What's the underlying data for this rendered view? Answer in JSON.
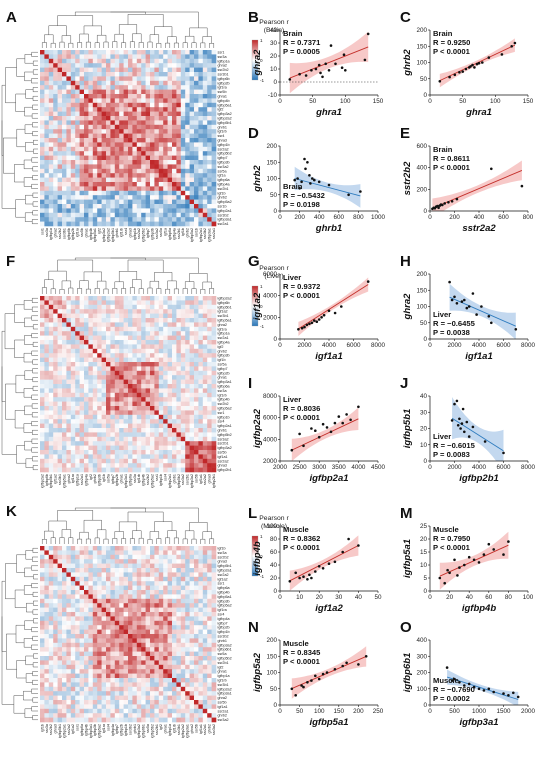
{
  "colors": {
    "positive": "#c4302b",
    "negative": "#2f7cbf",
    "red_band": "#f3b2b0",
    "blue_band": "#a9c8e8",
    "point": "#111111",
    "diagonal": "#c31f1f"
  },
  "heatmaps": [
    {
      "id": "A",
      "tissue": "Brain",
      "legend_title": [
        "Pearson r",
        "(Brain)"
      ],
      "legend_ticks": [
        "1",
        "0",
        "-1"
      ],
      "n": 40,
      "seed": 11,
      "base": 0.42,
      "blocks": [
        {
          "s": 9,
          "e": 32,
          "v": 0.42
        },
        {
          "s": 32,
          "e": 40,
          "v": -0.35
        }
      ],
      "gene_names": [
        "ssr1",
        "ssr3a",
        "igfbp1a",
        "ghra2",
        "ssr2b2",
        "ssr3b1",
        "igfbp6b",
        "igfbp2b",
        "igf1ra",
        "ssr5b",
        "ghra1",
        "igfbp4b",
        "igfbp5a1",
        "igf2",
        "igfbp3a2",
        "igfbp2a2",
        "igfbp5b1",
        "ghrb1",
        "igf1rb",
        "ssr4",
        "ghra3",
        "igfbp1b",
        "ssr2a2",
        "igfbp5b2",
        "igfbp7",
        "igfbp3b",
        "ssr3a2",
        "ssr5a",
        "igf1a",
        "igfbp6a",
        "igfbp4a",
        "ssr2b1",
        "igf1b",
        "ghrb2",
        "igfbp5a2",
        "ssr1b",
        "igfbp2a1",
        "ssr3b2",
        "igfbp3a1",
        "ssr2a1"
      ]
    },
    {
      "id": "F",
      "tissue": "Liver",
      "legend_title": [
        "Pearson r",
        "(Liver)"
      ],
      "legend_ticks": [
        "1",
        "0",
        "-1"
      ],
      "n": 40,
      "seed": 29,
      "base": 0.3,
      "blocks": [
        {
          "s": 0,
          "e": 6,
          "v": 0.18
        },
        {
          "s": 15,
          "e": 27,
          "v": 0.45
        },
        {
          "s": 33,
          "e": 40,
          "v": 0.72
        }
      ],
      "gene_names": [
        "igfbp2a2",
        "igfbp6b",
        "igfbp5b1",
        "igf1a2",
        "ssr3b1",
        "igfbp5a1",
        "ghra2",
        "igf1ra",
        "igfbp1a",
        "ssr2a1",
        "igfbp4a",
        "igf2",
        "ghrb2",
        "igfbp3b",
        "igf1b",
        "ssr5a",
        "igfbp7",
        "igfbp2b",
        "ghra1",
        "igfbp3a1",
        "igfbp6a",
        "ssr3a",
        "igf1rb",
        "igfbp4b",
        "ssr2b2",
        "igfbp5a2",
        "ssr1",
        "igfbp1b",
        "ssr4",
        "igfbp2a1",
        "ghrb1",
        "igfbp5b2",
        "ssr3a2",
        "ssr2b1",
        "igfbp3a2",
        "ssr5b",
        "igf1a1",
        "ssr2a2",
        "ghra3",
        "igfbp2b1"
      ]
    },
    {
      "id": "K",
      "tissue": "Muscle",
      "legend_title": [
        "Pearson r",
        "(Muscle)"
      ],
      "legend_ticks": [
        "1",
        "0",
        "-1"
      ],
      "n": 40,
      "seed": 47,
      "base": 0.34,
      "blocks": [
        {
          "s": 12,
          "e": 30,
          "v": 0.42
        },
        {
          "s": 0,
          "e": 6,
          "v": 0.1
        }
      ],
      "gene_names": [
        "igf1b",
        "ssr3a",
        "ssr2b2",
        "ghra3",
        "igfbp5b1",
        "igfbp2a1",
        "ssr2a2",
        "igf1a2",
        "ssr1",
        "igfbp6a",
        "igfbp4b",
        "igfbp5a1",
        "igfbp3b",
        "igfbp5a2",
        "igf1ra",
        "ssr4",
        "igfbp4a",
        "igfbp7",
        "igfbp2b",
        "igfbp1b",
        "ssr3b2",
        "ghrb1",
        "igfbp3a2",
        "igfbp6b1",
        "ssr5a",
        "igfbp5b2",
        "ssr2b1",
        "igf2",
        "ghra1",
        "igfbp1a",
        "igf1rb",
        "ssr3b1",
        "igfbp2a2",
        "igfbp3a1",
        "ghra2",
        "ssr5b",
        "igf1a1",
        "ssr2a1",
        "ghrb2",
        "ssr3a2"
      ]
    }
  ],
  "chart_data": [
    {
      "id": "B",
      "type": "scatter",
      "tissue": "Brain",
      "color": "red",
      "xlabel": "ghra1",
      "ylabel": "ghra2",
      "stats": {
        "tissue": "Brain",
        "r": "R = 0.7371",
        "p": "P = 0.0005"
      },
      "xlim": [
        0,
        150
      ],
      "ylim": [
        -10,
        40
      ],
      "xticks": [
        0,
        50,
        100,
        150
      ],
      "yticks": [
        -10,
        0,
        10,
        20,
        30,
        40
      ],
      "x": [
        15,
        30,
        40,
        48,
        55,
        60,
        62,
        65,
        70,
        75,
        78,
        85,
        95,
        98,
        100,
        130,
        135
      ],
      "y": [
        2,
        6,
        5,
        9,
        10,
        13,
        7,
        4,
        14,
        9,
        28,
        14,
        11,
        21,
        9,
        17,
        37
      ],
      "fit": {
        "slope": 0.2,
        "intercept": 0
      },
      "band": 4.5,
      "zero_line": true
    },
    {
      "id": "C",
      "type": "scatter",
      "tissue": "Brain",
      "color": "red",
      "xlabel": "ghra1",
      "ylabel": "ghrb2",
      "stats": {
        "tissue": "Brain",
        "r": "R = 0.9250",
        "p": "P < 0.0001"
      },
      "xlim": [
        0,
        150
      ],
      "ylim": [
        0,
        200
      ],
      "xticks": [
        0,
        50,
        100,
        150
      ],
      "yticks": [
        0,
        50,
        100,
        150,
        200
      ],
      "x": [
        15,
        30,
        38,
        45,
        50,
        55,
        60,
        62,
        65,
        68,
        72,
        75,
        80,
        90,
        110,
        125,
        130
      ],
      "y": [
        42,
        55,
        62,
        70,
        72,
        80,
        85,
        88,
        92,
        85,
        95,
        98,
        100,
        115,
        125,
        150,
        160
      ],
      "fit": {
        "slope": 0.95,
        "intercept": 30
      },
      "band": 8
    },
    {
      "id": "D",
      "type": "scatter",
      "tissue": "Brain",
      "color": "blue",
      "xlabel": "ghrb1",
      "ylabel": "ghrb2",
      "stats": {
        "tissue": "Brain",
        "r": "R = −0.5432",
        "p": "P = 0.0198"
      },
      "xlim": [
        0,
        1000
      ],
      "ylim": [
        0,
        200
      ],
      "xticks": [
        0,
        200,
        400,
        600,
        800,
        1000
      ],
      "yticks": [
        0,
        50,
        100,
        150,
        200
      ],
      "x": [
        150,
        180,
        200,
        220,
        250,
        260,
        280,
        300,
        310,
        330,
        350,
        400,
        500,
        700,
        820
      ],
      "y": [
        95,
        100,
        70,
        90,
        160,
        130,
        150,
        110,
        85,
        100,
        95,
        90,
        80,
        50,
        60
      ],
      "fit": {
        "slope": -0.08,
        "intercept": 112
      },
      "band": 14
    },
    {
      "id": "E",
      "type": "scatter",
      "tissue": "Brain",
      "color": "red",
      "xlabel": "sstr2a2",
      "ylabel": "sstr2b2",
      "stats": {
        "tissue": "Brain",
        "r": "R = 0.8611",
        "p": "P < 0.0001"
      },
      "xlim": [
        0,
        800
      ],
      "ylim": [
        0,
        600
      ],
      "xticks": [
        0,
        200,
        400,
        600,
        800
      ],
      "yticks": [
        0,
        200,
        400,
        600
      ],
      "x": [
        20,
        30,
        40,
        50,
        60,
        70,
        80,
        90,
        100,
        120,
        150,
        180,
        220,
        500,
        750
      ],
      "y": [
        20,
        30,
        25,
        40,
        45,
        30,
        50,
        60,
        55,
        70,
        80,
        90,
        110,
        390,
        230
      ],
      "fit": {
        "slope": 0.48,
        "intercept": 15
      },
      "band": 35
    },
    {
      "id": "G",
      "type": "scatter",
      "tissue": "Liver",
      "color": "red",
      "xlabel": "igf1a1",
      "ylabel": "igf1a2",
      "stats": {
        "tissue": "Liver",
        "r": "R = 0.9372",
        "p": "P < 0.0001"
      },
      "xlim": [
        0,
        8000
      ],
      "ylim": [
        0,
        6000
      ],
      "xticks": [
        0,
        2000,
        4000,
        6000,
        8000
      ],
      "yticks": [
        0,
        2000,
        4000,
        6000
      ],
      "x": [
        1500,
        1800,
        2000,
        2200,
        2400,
        2600,
        2800,
        3000,
        3200,
        3400,
        3600,
        4000,
        4500,
        5000,
        7200
      ],
      "y": [
        900,
        1000,
        1100,
        1300,
        1400,
        1500,
        1700,
        1600,
        1800,
        2000,
        2200,
        2600,
        2400,
        3000,
        5300
      ],
      "fit": {
        "slope": 0.72,
        "intercept": -150
      },
      "band": 250
    },
    {
      "id": "H",
      "type": "scatter",
      "tissue": "Liver",
      "color": "blue",
      "xlabel": "igf1a1",
      "ylabel": "ghra2",
      "stats": {
        "tissue": "Liver",
        "r": "R = −0.6455",
        "p": "P = 0.0038"
      },
      "xlim": [
        0,
        8000
      ],
      "ylim": [
        0,
        200
      ],
      "xticks": [
        0,
        2000,
        4000,
        6000,
        8000
      ],
      "yticks": [
        0,
        50,
        100,
        150,
        200
      ],
      "x": [
        1600,
        1800,
        2000,
        2200,
        2600,
        2800,
        3000,
        3200,
        3500,
        3800,
        4200,
        4800,
        5000,
        7000
      ],
      "y": [
        175,
        120,
        130,
        110,
        115,
        120,
        95,
        100,
        140,
        75,
        100,
        70,
        50,
        30
      ],
      "fit": {
        "slope": -0.0165,
        "intercept": 155
      },
      "band": 16
    },
    {
      "id": "I",
      "type": "scatter",
      "tissue": "Liver",
      "color": "red",
      "xlabel": "igfbp2a1",
      "ylabel": "igfbp2a2",
      "stats": {
        "tissue": "Liver",
        "r": "R = 0.8036",
        "p": "P < 0.0001"
      },
      "xlim": [
        2000,
        4500
      ],
      "ylim": [
        2000,
        8000
      ],
      "xticks": [
        2000,
        2500,
        3000,
        3500,
        4000,
        4500
      ],
      "yticks": [
        2000,
        4000,
        6000,
        8000
      ],
      "x": [
        2300,
        2500,
        2600,
        2800,
        2900,
        3000,
        3100,
        3200,
        3300,
        3400,
        3500,
        3600,
        3700,
        3800,
        4000
      ],
      "y": [
        3000,
        4500,
        3400,
        5000,
        4800,
        4200,
        5400,
        5100,
        4700,
        5500,
        6100,
        5500,
        6300,
        5800,
        7000
      ],
      "fit": {
        "slope": 1.7,
        "intercept": -900
      },
      "band": 400
    },
    {
      "id": "J",
      "type": "scatter",
      "tissue": "Liver",
      "color": "blue",
      "xlabel": "igfbp2b1",
      "ylabel": "igfbp5b1",
      "stats": {
        "tissue": "Liver",
        "r": "R = −0.6015",
        "p": "P = 0.0083"
      },
      "xlim": [
        0,
        8000
      ],
      "ylim": [
        0,
        40
      ],
      "xticks": [
        0,
        2000,
        4000,
        6000,
        8000
      ],
      "yticks": [
        0,
        10,
        20,
        30,
        40
      ],
      "x": [
        1800,
        2000,
        2200,
        2300,
        2400,
        2500,
        2600,
        2700,
        2800,
        3000,
        3200,
        3500,
        4500,
        6000
      ],
      "y": [
        25,
        35,
        37,
        22,
        26,
        20,
        23,
        32,
        18,
        24,
        15,
        21,
        12,
        5
      ],
      "fit": {
        "slope": -0.0048,
        "intercept": 35
      },
      "band": 5
    },
    {
      "id": "L",
      "type": "scatter",
      "tissue": "Muscle",
      "color": "red",
      "xlabel": "igf1a2",
      "ylabel": "igfbp4b",
      "stats": {
        "tissue": "Muscle",
        "r": "R = 0.8362",
        "p": "P < 0.0001"
      },
      "xlim": [
        0,
        50
      ],
      "ylim": [
        0,
        100
      ],
      "xticks": [
        0,
        10,
        20,
        30,
        40,
        50
      ],
      "yticks": [
        0,
        20,
        40,
        60,
        80,
        100
      ],
      "x": [
        5,
        8,
        10,
        12,
        14,
        15,
        16,
        18,
        20,
        22,
        25,
        28,
        32,
        35,
        40
      ],
      "y": [
        15,
        28,
        20,
        22,
        18,
        25,
        20,
        30,
        38,
        35,
        42,
        45,
        60,
        80,
        70
      ],
      "fit": {
        "slope": 1.55,
        "intercept": 8
      },
      "band": 6
    },
    {
      "id": "M",
      "type": "scatter",
      "tissue": "Muscle",
      "color": "red",
      "xlabel": "igfbp4b",
      "ylabel": "igfbp5a1",
      "stats": {
        "tissue": "Muscle",
        "r": "R = 0.7950",
        "p": "P < 0.0001"
      },
      "xlim": [
        0,
        100
      ],
      "ylim": [
        0,
        25
      ],
      "xticks": [
        0,
        20,
        40,
        60,
        80,
        100
      ],
      "yticks": [
        0,
        5,
        10,
        15,
        20,
        25
      ],
      "x": [
        10,
        15,
        18,
        20,
        25,
        28,
        30,
        35,
        40,
        45,
        50,
        55,
        60,
        65,
        75,
        80
      ],
      "y": [
        5,
        3,
        8,
        7,
        12,
        6,
        9,
        10,
        13,
        12,
        11,
        14,
        18,
        16,
        14,
        19
      ],
      "fit": {
        "slope": 0.17,
        "intercept": 4
      },
      "band": 2
    },
    {
      "id": "N",
      "type": "scatter",
      "tissue": "Muscle",
      "color": "red",
      "xlabel": "igfbp5a1",
      "ylabel": "igfbp5a2",
      "stats": {
        "tissue": "Muscle",
        "r": "R = 0.8345",
        "p": "P < 0.0001"
      },
      "xlim": [
        0,
        250
      ],
      "ylim": [
        0,
        200
      ],
      "xticks": [
        0,
        50,
        100,
        150,
        200,
        250
      ],
      "yticks": [
        0,
        50,
        100,
        150,
        200
      ],
      "x": [
        30,
        40,
        55,
        60,
        70,
        80,
        90,
        100,
        110,
        120,
        140,
        160,
        170,
        200,
        220
      ],
      "y": [
        50,
        30,
        60,
        55,
        70,
        75,
        90,
        80,
        95,
        100,
        110,
        120,
        130,
        125,
        150
      ],
      "fit": {
        "slope": 0.52,
        "intercept": 35
      },
      "band": 12
    },
    {
      "id": "O",
      "type": "scatter",
      "tissue": "Muscle",
      "color": "blue",
      "xlabel": "igfbp3a1",
      "ylabel": "igfbp6b1",
      "stats": {
        "tissue": "Muscle",
        "r": "R = −0.7690",
        "p": "P = 0.0002"
      },
      "xlim": [
        0,
        2000
      ],
      "ylim": [
        0,
        400
      ],
      "xticks": [
        0,
        500,
        1000,
        1500,
        2000
      ],
      "yticks": [
        0,
        100,
        200,
        300,
        400
      ],
      "x": [
        350,
        450,
        500,
        600,
        700,
        800,
        900,
        1000,
        1100,
        1200,
        1300,
        1500,
        1600,
        1700,
        1800
      ],
      "y": [
        230,
        150,
        160,
        140,
        120,
        130,
        110,
        100,
        90,
        100,
        80,
        70,
        60,
        75,
        50
      ],
      "fit": {
        "slope": -0.095,
        "intercept": 205
      },
      "band": 18
    }
  ]
}
